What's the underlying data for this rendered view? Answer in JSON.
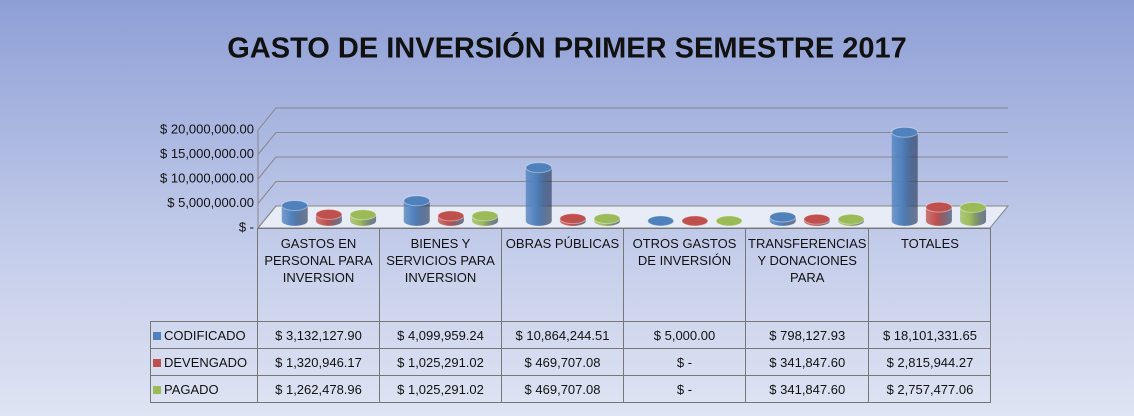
{
  "chart_data": {
    "type": "bar3d",
    "title": "GASTO DE INVERSIÓN PRIMER SEMESTRE 2017",
    "categories": [
      "GASTOS EN PERSONAL PARA INVERSION",
      "BIENES Y SERVICIOS PARA INVERSION",
      "OBRAS PÚBLICAS",
      "OTROS GASTOS DE INVERSIÓN",
      "TRANSFERENCIAS Y DONACIONES PARA",
      "TOTALES"
    ],
    "series": [
      {
        "name": "CODIFICADO",
        "color": "#4f81bd",
        "values": [
          3132127.9,
          4099959.24,
          10864244.51,
          5000.0,
          798127.93,
          18101331.65
        ],
        "value_labels": [
          "$ 3,132,127.90",
          "$ 4,099,959.24",
          "$ 10,864,244.51",
          "$ 5,000.00",
          "$ 798,127.93",
          "$ 18,101,331.65"
        ]
      },
      {
        "name": "DEVENGADO",
        "color": "#c0504d",
        "values": [
          1320946.17,
          1025291.02,
          469707.08,
          0,
          341847.6,
          2815944.27
        ],
        "value_labels": [
          "$ 1,320,946.17",
          "$ 1,025,291.02",
          "$ 469,707.08",
          "$ -",
          "$ 341,847.60",
          "$ 2,815,944.27"
        ]
      },
      {
        "name": "PAGADO",
        "color": "#9bbb59",
        "values": [
          1262478.96,
          1025291.02,
          469707.08,
          0,
          341847.6,
          2757477.06
        ],
        "value_labels": [
          "$ 1,262,478.96",
          "$ 1,025,291.02",
          "$ 469,707.08",
          "$ -",
          "$ 341,847.60",
          "$ 2,757,477.06"
        ]
      }
    ],
    "ylim": [
      0,
      20000000
    ],
    "yticks": [
      {
        "value": 0,
        "label": "$ -"
      },
      {
        "value": 5000000,
        "label": "$ 5,000,000.00"
      },
      {
        "value": 10000000,
        "label": "$ 10,000,000.00"
      },
      {
        "value": 15000000,
        "label": "$ 15,000,000.00"
      },
      {
        "value": 20000000,
        "label": "$ 20,000,000.00"
      }
    ],
    "grid": true
  }
}
